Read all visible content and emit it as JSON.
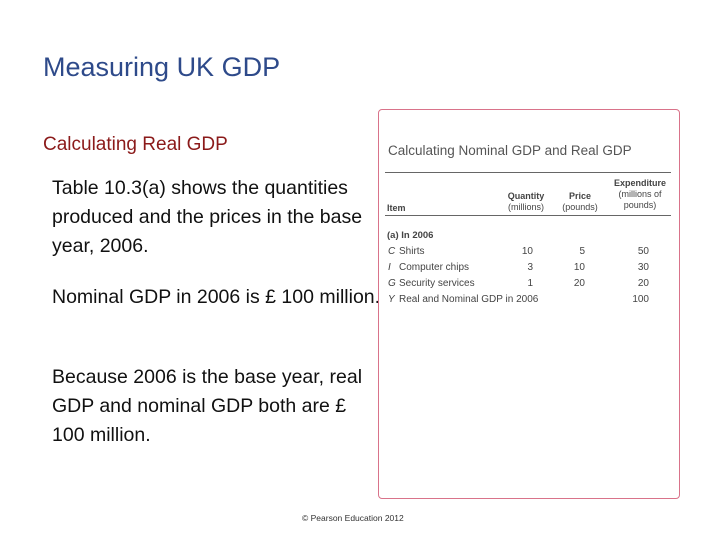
{
  "slide": {
    "title": "Measuring UK GDP",
    "subtitle": "Calculating Real GDP",
    "paragraphs": [
      "Table 10.3(a) shows the quantities produced and the prices in the base year, 2006.",
      "Nominal GDP in 2006 is £ 100 million.",
      "Because 2006 is the base year, real GDP and nominal GDP both are £ 100 million."
    ],
    "footer": "© Pearson Education 2012"
  },
  "table": {
    "title": "Calculating Nominal GDP and Real GDP",
    "columns": {
      "item": "Item",
      "quantity": "Quantity",
      "quantity_unit": "(millions)",
      "price": "Price",
      "price_unit": "(pounds)",
      "expenditure": "Expenditure",
      "expenditure_unit": "(millions of pounds)"
    },
    "section_label": "(a) In 2006",
    "rows": [
      {
        "symbol": "C",
        "item": "Shirts",
        "quantity": "10",
        "price": "5",
        "expenditure": "50"
      },
      {
        "symbol": "I",
        "item": "Computer chips",
        "quantity": "3",
        "price": "10",
        "expenditure": "30"
      },
      {
        "symbol": "G",
        "item": "Security services",
        "quantity": "1",
        "price": "20",
        "expenditure": "20"
      },
      {
        "symbol": "Y",
        "item": "Real and Nominal GDP in 2006",
        "quantity": "",
        "price": "",
        "expenditure": "100"
      }
    ]
  }
}
